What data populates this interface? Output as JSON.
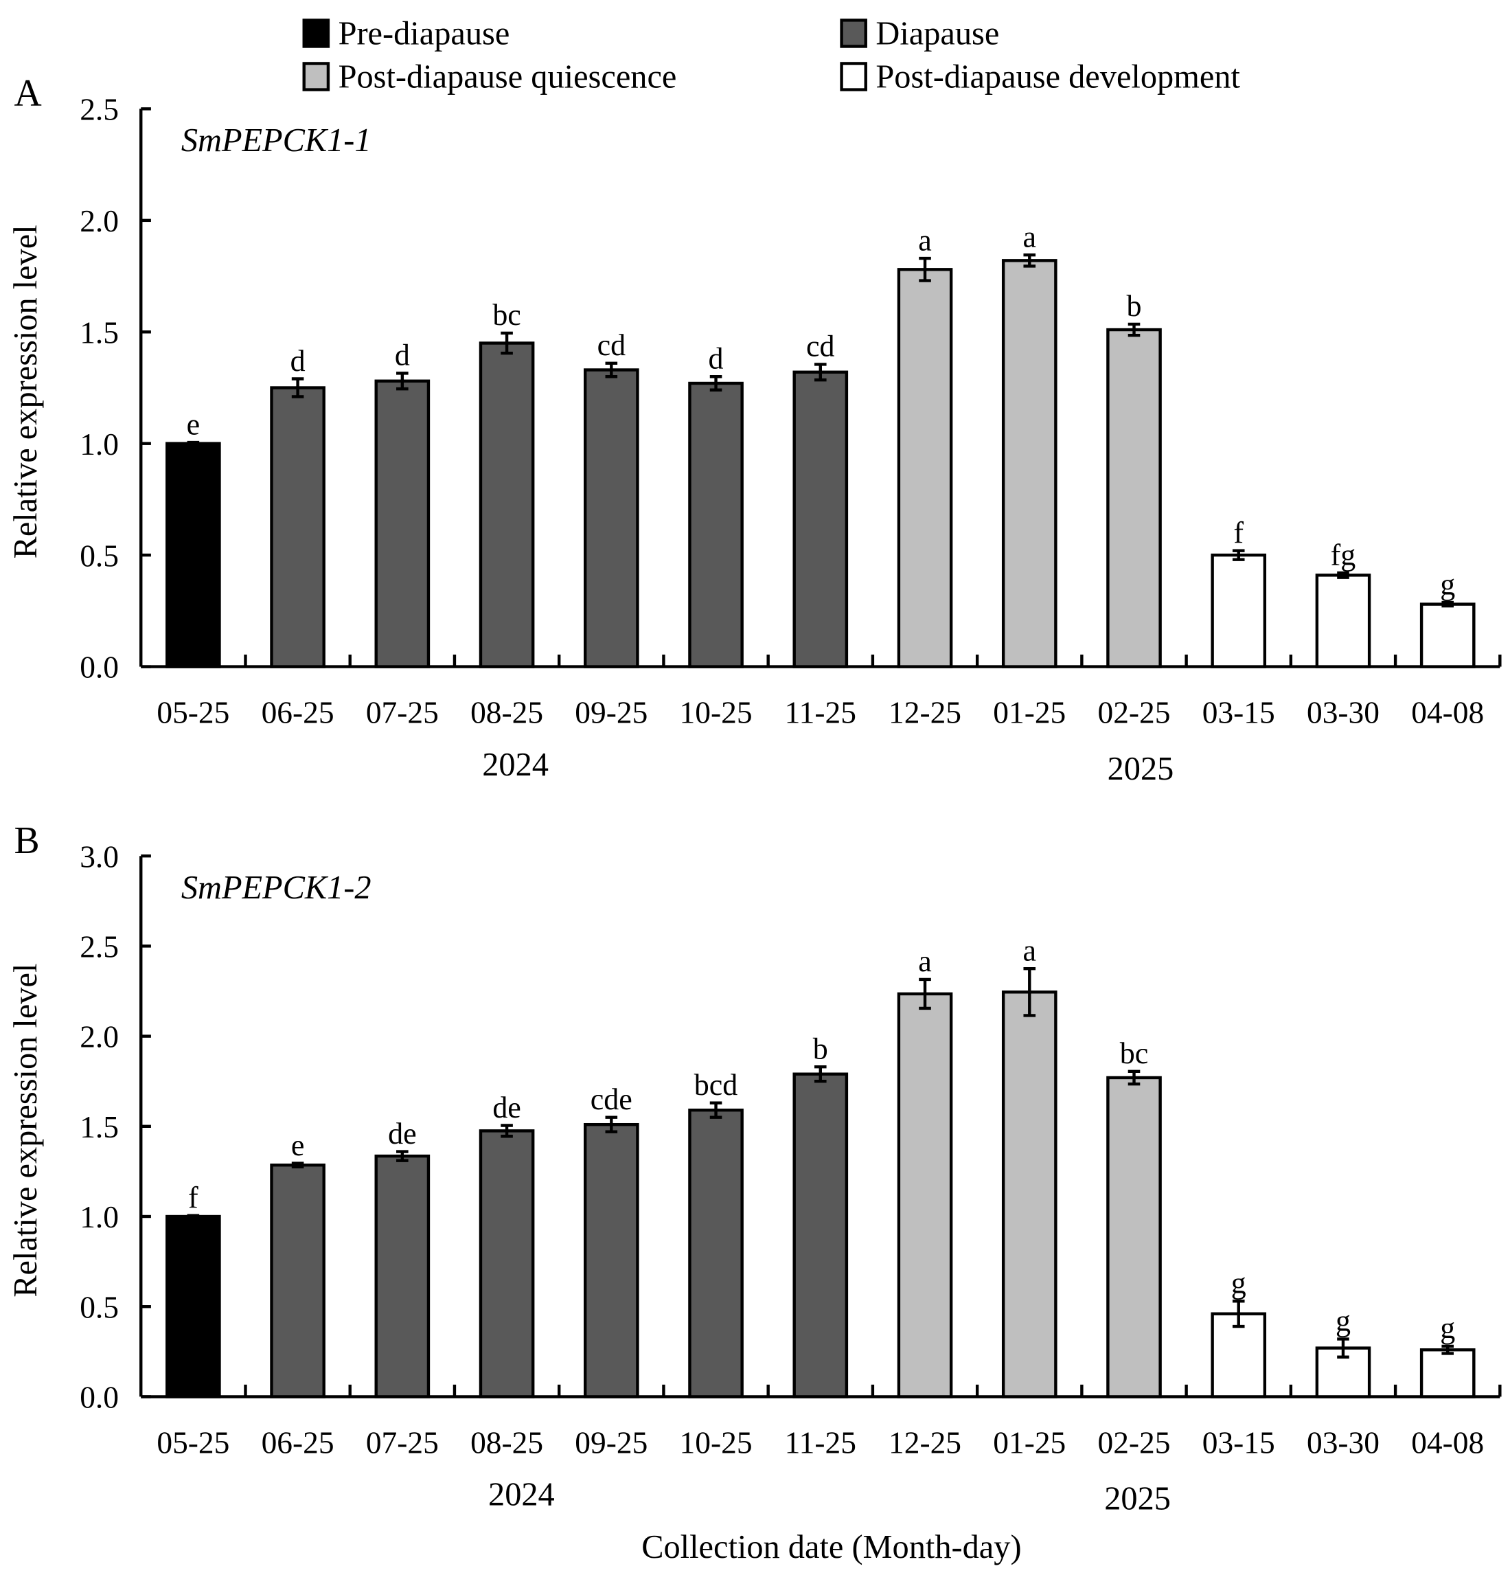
{
  "legend": [
    {
      "label": "Pre-diapause",
      "color": "#000000"
    },
    {
      "label": "Diapause",
      "color": "#595959"
    },
    {
      "label": "Post-diapause quiescence",
      "color": "#bfbfbf"
    },
    {
      "label": "Post-diapause development",
      "color": "#ffffff"
    }
  ],
  "xlabel": "Collection date (Month-day)",
  "chart_data": [
    {
      "type": "bar",
      "panel": "A",
      "title": "SmPEPCK1-1",
      "ylabel": "Relative expression level",
      "ylim": [
        0,
        2.5
      ],
      "yticks": [
        "0.0",
        "0.5",
        "1.0",
        "1.5",
        "2.0",
        "2.5"
      ],
      "categories": [
        "05-25",
        "06-25",
        "07-25",
        "08-25",
        "09-25",
        "10-25",
        "11-25",
        "12-25",
        "01-25",
        "02-25",
        "03-15",
        "03-30",
        "04-08"
      ],
      "years": [
        "2024",
        "2025"
      ],
      "group": [
        0,
        1,
        1,
        1,
        1,
        1,
        1,
        2,
        2,
        2,
        3,
        3,
        3
      ],
      "values": [
        1.0,
        1.25,
        1.28,
        1.45,
        1.33,
        1.27,
        1.32,
        1.78,
        1.82,
        1.51,
        0.5,
        0.41,
        0.28
      ],
      "errors": [
        0.005,
        0.04,
        0.035,
        0.045,
        0.03,
        0.03,
        0.035,
        0.05,
        0.025,
        0.025,
        0.02,
        0.01,
        0.008
      ],
      "letters": [
        "e",
        "d",
        "d",
        "bc",
        "cd",
        "d",
        "cd",
        "a",
        "a",
        "b",
        "f",
        "fg",
        "g"
      ]
    },
    {
      "type": "bar",
      "panel": "B",
      "title": "SmPEPCK1-2",
      "ylabel": "Relative expression level",
      "ylim": [
        0,
        3.0
      ],
      "yticks": [
        "0.0",
        "0.5",
        "1.0",
        "1.5",
        "2.0",
        "2.5",
        "3.0"
      ],
      "categories": [
        "05-25",
        "06-25",
        "07-25",
        "08-25",
        "09-25",
        "10-25",
        "11-25",
        "12-25",
        "01-25",
        "02-25",
        "03-15",
        "03-30",
        "04-08"
      ],
      "years": [
        "2024",
        "2025"
      ],
      "group": [
        0,
        1,
        1,
        1,
        1,
        1,
        1,
        2,
        2,
        2,
        3,
        3,
        3
      ],
      "values": [
        1.0,
        1.285,
        1.335,
        1.475,
        1.51,
        1.59,
        1.79,
        2.235,
        2.245,
        1.77,
        0.46,
        0.27,
        0.26
      ],
      "errors": [
        0.005,
        0.01,
        0.025,
        0.03,
        0.04,
        0.04,
        0.04,
        0.08,
        0.13,
        0.035,
        0.07,
        0.05,
        0.02
      ],
      "letters": [
        "f",
        "e",
        "de",
        "de",
        "cde",
        "bcd",
        "b",
        "a",
        "a",
        "bc",
        "g",
        "g",
        "g"
      ]
    }
  ]
}
